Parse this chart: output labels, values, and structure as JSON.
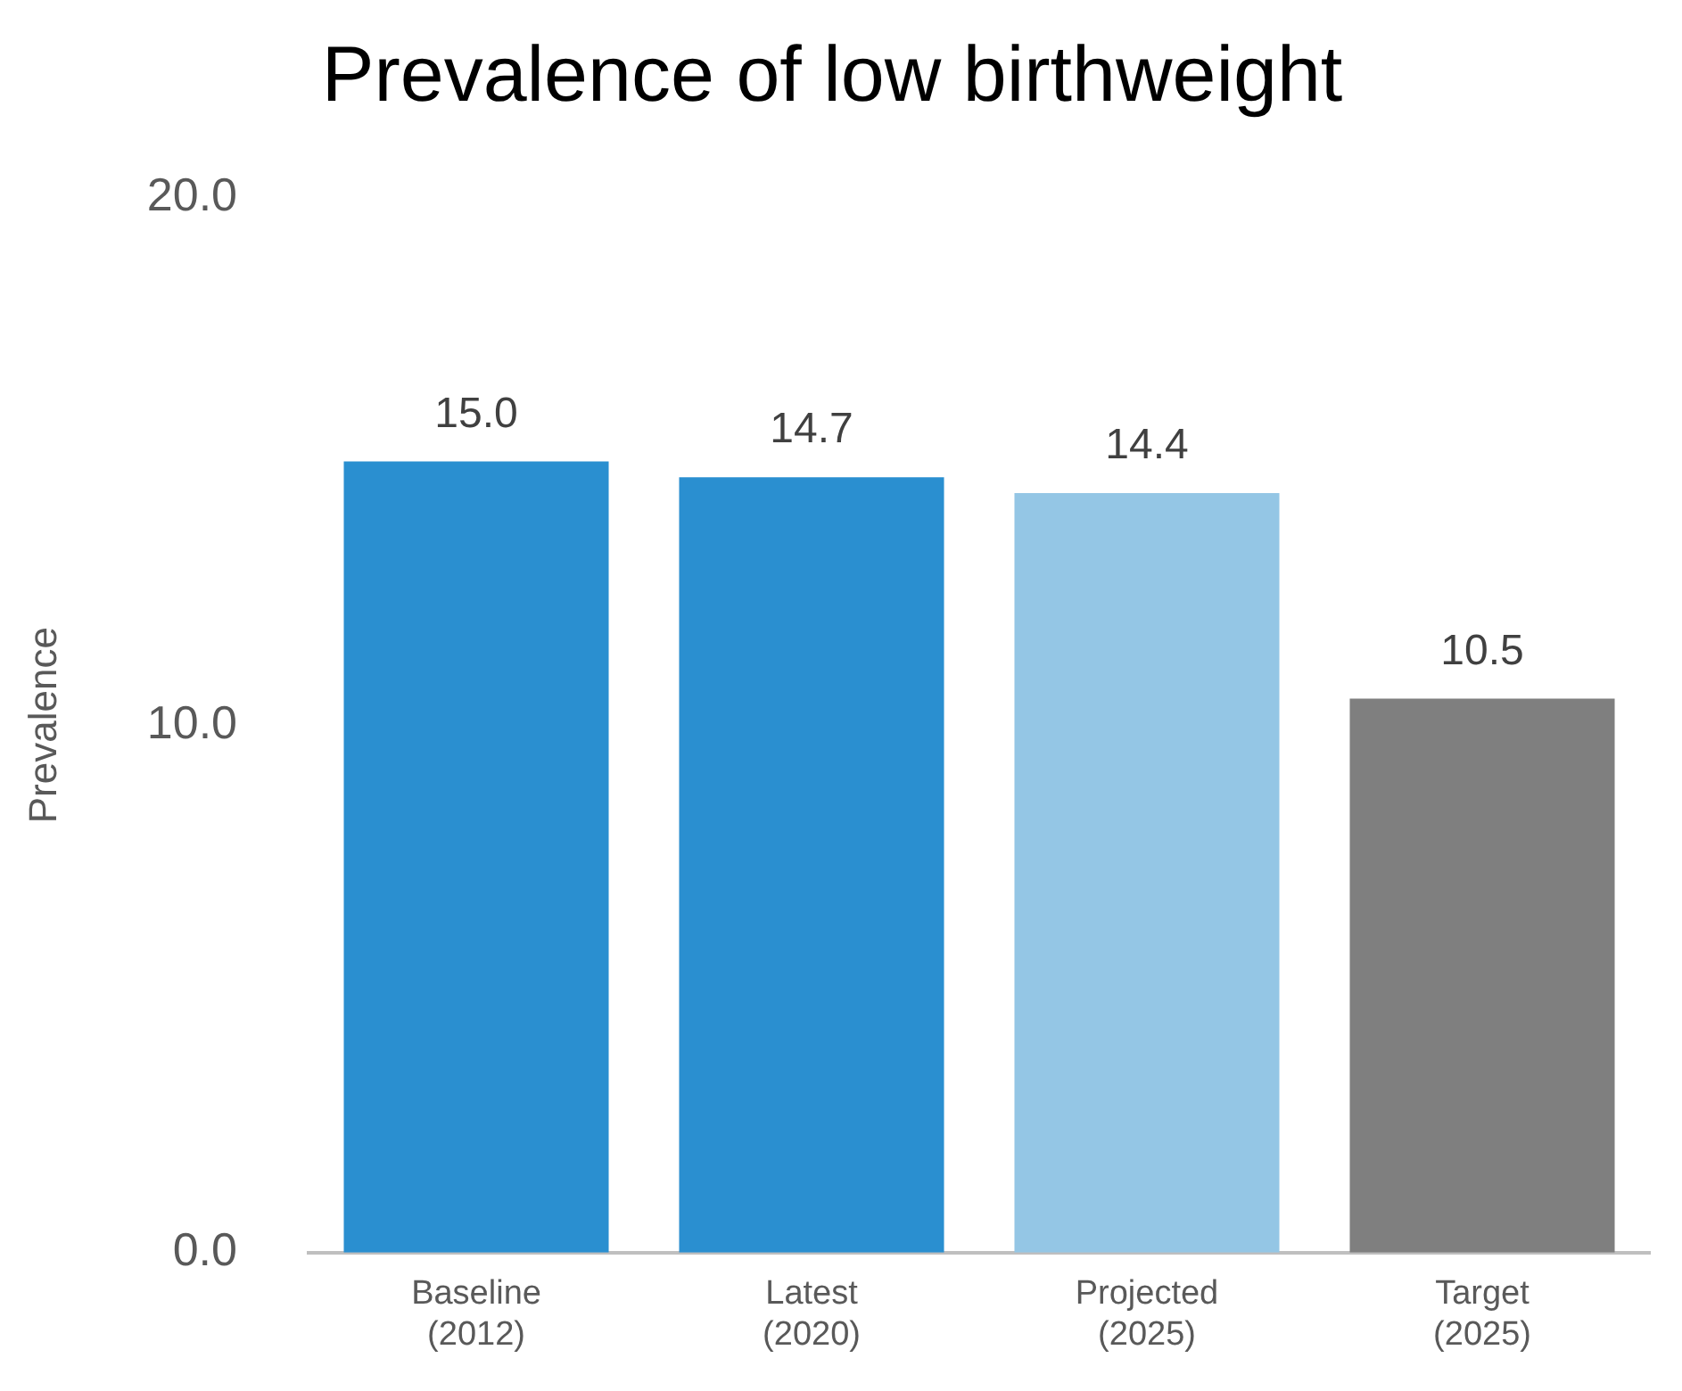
{
  "chart_data": {
    "type": "bar",
    "title": "Prevalence of low birthweight",
    "ylabel": "Prevalence",
    "categories": [
      "Baseline\n(2012)",
      "Latest\n(2020)",
      "Projected\n(2025)",
      "Target\n(2025)"
    ],
    "values": [
      15.0,
      14.7,
      14.4,
      10.5
    ],
    "colors": [
      "#2a8fd0",
      "#2a8fd0",
      "#94c6e5",
      "#7f7f7f"
    ],
    "value_labels": [
      "15.0",
      "14.7",
      "14.4",
      "10.5"
    ],
    "ylim": [
      0,
      20
    ],
    "yticks": [
      {
        "value": 0,
        "label": "0.0"
      },
      {
        "value": 10,
        "label": "10.0"
      },
      {
        "value": 20,
        "label": "20.0"
      }
    ],
    "grid": false,
    "legend": false
  }
}
